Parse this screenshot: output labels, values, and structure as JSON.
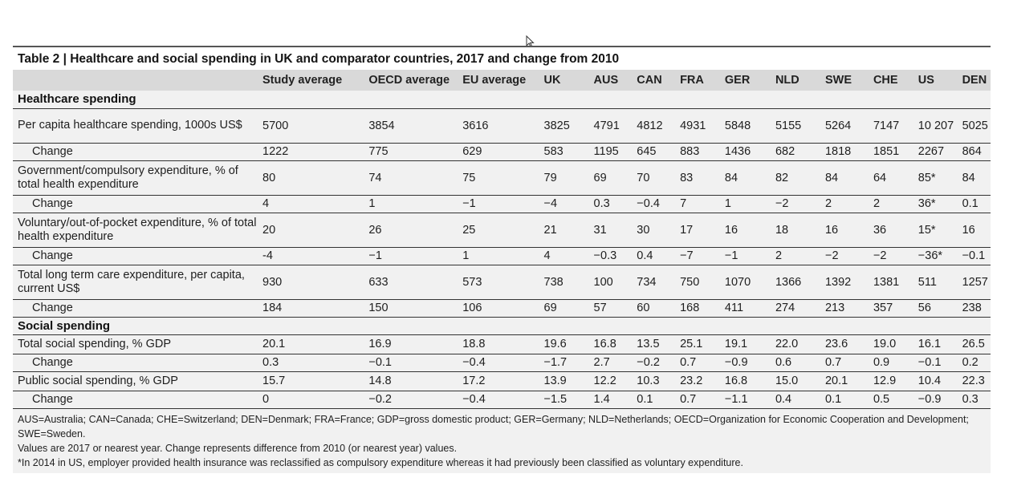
{
  "title": "Table 2 | Healthcare and social spending in UK and comparator countries, 2017 and change from 2010",
  "columns": [
    "",
    "Study average",
    "OECD average",
    "EU average",
    "UK",
    "AUS",
    "CAN",
    "FRA",
    "GER",
    "NLD",
    "SWE",
    "CHE",
    "US",
    "DEN"
  ],
  "sections": [
    {
      "name": "Healthcare spending",
      "rows": [
        {
          "label": "Per capita healthcare spending, 1000s US$",
          "values": [
            "5700",
            "3854",
            "3616",
            "3825",
            "4791",
            "4812",
            "4931",
            "5848",
            "5155",
            "5264",
            "7147",
            "10 207",
            "5025"
          ]
        },
        {
          "label": "Change",
          "values": [
            "1222",
            "775",
            "629",
            "583",
            "1195",
            "645",
            "883",
            "1436",
            "682",
            "1818",
            "1851",
            "2267",
            "864"
          ]
        },
        {
          "label": "Government/compulsory expenditure, % of total health expenditure",
          "values": [
            "80",
            "74",
            "75",
            "79",
            "69",
            "70",
            "83",
            "84",
            "82",
            "84",
            "64",
            "85*",
            "84"
          ]
        },
        {
          "label": "Change",
          "values": [
            "4",
            "1",
            "−1",
            "−4",
            "0.3",
            "−0.4",
            "7",
            "1",
            "−2",
            "2",
            "2",
            "36*",
            "0.1"
          ]
        },
        {
          "label": "Voluntary/out-of-pocket expenditure, % of total health expenditure",
          "values": [
            "20",
            "26",
            "25",
            "21",
            "31",
            "30",
            "17",
            "16",
            "18",
            "16",
            "36",
            "15*",
            "16"
          ]
        },
        {
          "label": "Change",
          "values": [
            "-4",
            "−1",
            "1",
            "4",
            "−0.3",
            "0.4",
            "−7",
            "−1",
            "2",
            "−2",
            "−2",
            "−36*",
            "−0.1"
          ]
        },
        {
          "label": "Total long term care expenditure, per capita, current US$",
          "values": [
            "930",
            "633",
            "573",
            "738",
            "100",
            "734",
            "750",
            "1070",
            "1366",
            "1392",
            "1381",
            "511",
            "1257"
          ]
        },
        {
          "label": "Change",
          "values": [
            "184",
            "150",
            "106",
            "69",
            "57",
            "60",
            "168",
            "411",
            "274",
            "213",
            "357",
            "56",
            "238"
          ]
        }
      ]
    },
    {
      "name": "Social spending",
      "rows": [
        {
          "label": "Total social spending, % GDP",
          "values": [
            "20.1",
            "16.9",
            "18.8",
            "19.6",
            "16.8",
            "13.5",
            "25.1",
            "19.1",
            "22.0",
            "23.6",
            "19.0",
            "16.1",
            "26.5"
          ]
        },
        {
          "label": "Change",
          "values": [
            "0.3",
            "−0.1",
            "−0.4",
            "−1.7",
            "2.7",
            "−0.2",
            "0.7",
            "−0.9",
            "0.6",
            "0.7",
            "0.9",
            "−0.1",
            "0.2"
          ]
        },
        {
          "label": "Public social spending, % GDP",
          "values": [
            "15.7",
            "14.8",
            "17.2",
            "13.9",
            "12.2",
            "10.3",
            "23.2",
            "16.8",
            "15.0",
            "20.1",
            "12.9",
            "10.4",
            "22.3"
          ]
        },
        {
          "label": "Change",
          "values": [
            "0",
            "−0.2",
            "−0.4",
            "−1.5",
            "1.4",
            "0.1",
            "0.7",
            "−1.1",
            "0.4",
            "0.1",
            "0.5",
            "−0.9",
            "0.3"
          ]
        }
      ]
    }
  ],
  "notes": [
    "AUS=Australia; CAN=Canada; CHE=Switzerland; DEN=Denmark; FRA=France; GDP=gross domestic product; GER=Germany; NLD=Netherlands; OECD=Organization for Economic Cooperation and Development; SWE=Sweden.",
    "Values are 2017 or nearest year. Change represents difference from 2010 (or nearest year) values.",
    "*In 2014 in US, employer provided health insurance was reclassified as compulsory expenditure whereas it had previously been classified as voluntary expenditure."
  ]
}
